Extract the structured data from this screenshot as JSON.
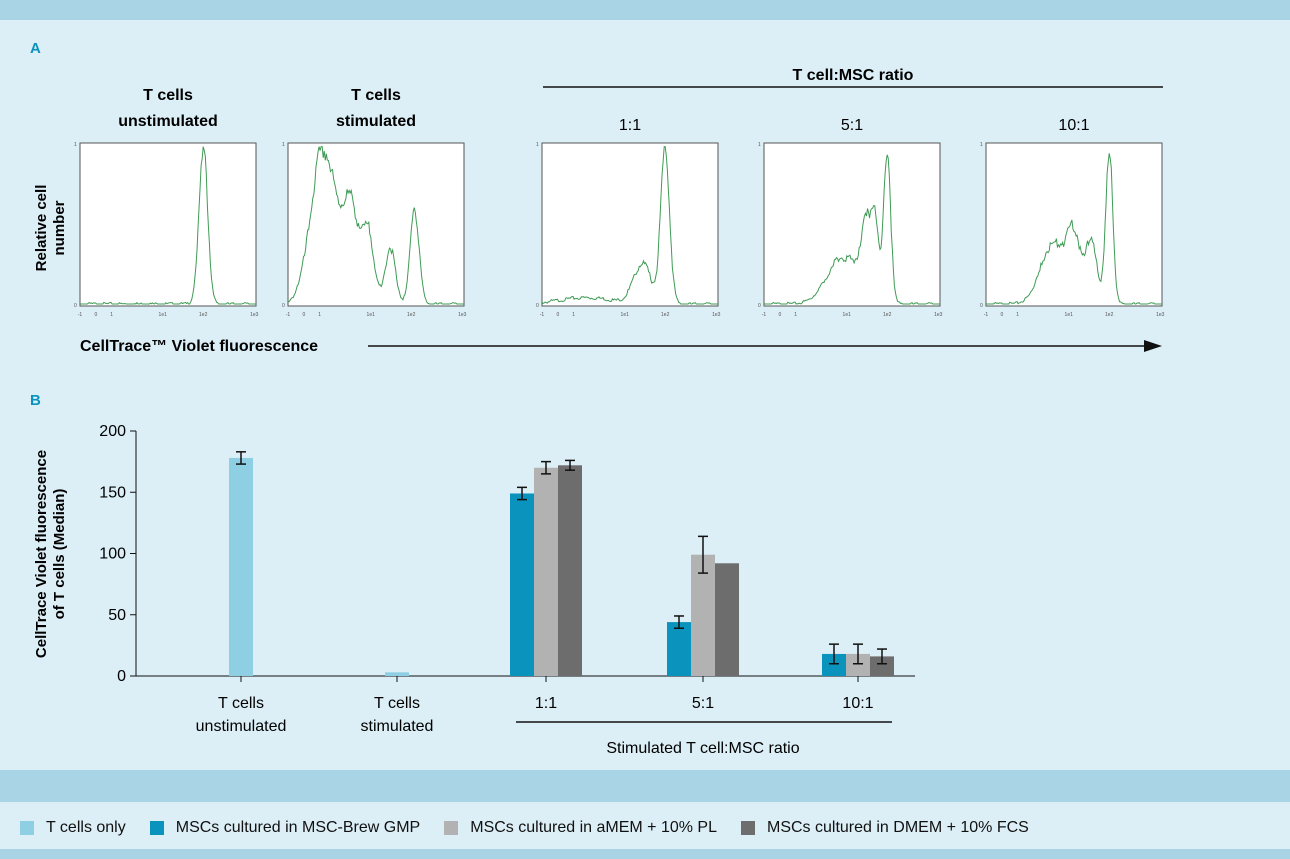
{
  "panel_a": {
    "label": "A",
    "ratio_header": "T cell:MSC ratio",
    "y_axis_label_line1": "Relative cell",
    "y_axis_label_line2": "number",
    "x_axis_label": "CellTrace™ Violet fluorescence",
    "histograms": [
      {
        "title_line1": "T cells",
        "title_line2": "unstimulated"
      },
      {
        "title_line1": "T cells",
        "title_line2": "stimulated"
      },
      {
        "title_line1": "1:1",
        "title_line2": ""
      },
      {
        "title_line1": "5:1",
        "title_line2": ""
      },
      {
        "title_line1": "10:1",
        "title_line2": ""
      }
    ],
    "tick_labels": [
      "-1",
      "0",
      "1",
      "1e1",
      "1e2",
      "1e3"
    ],
    "line_color": "#3f9b55"
  },
  "chart_data": {
    "type": "bar",
    "panel_label": "B",
    "ylabel_line1": "CellTrace Violet fluorescence",
    "ylabel_line2": "of T cells (Median)",
    "ylim": [
      0,
      200
    ],
    "yticks": [
      0,
      50,
      100,
      150,
      200
    ],
    "categories": [
      {
        "line1": "T cells",
        "line2": "unstimulated"
      },
      {
        "line1": "T cells",
        "line2": "stimulated"
      },
      {
        "line1": "1:1",
        "line2": ""
      },
      {
        "line1": "5:1",
        "line2": ""
      },
      {
        "line1": "10:1",
        "line2": ""
      }
    ],
    "group_label": "Stimulated T cell:MSC ratio",
    "series": [
      {
        "name": "T cells only",
        "color": "#8fcfe3",
        "values": [
          178,
          3,
          null,
          null,
          null
        ],
        "errors": [
          5,
          0,
          null,
          null,
          null
        ]
      },
      {
        "name": "MSCs cultured in MSC-Brew GMP",
        "color": "#0a94bd",
        "values": [
          null,
          null,
          149,
          44,
          18
        ],
        "errors": [
          null,
          null,
          5,
          5,
          8
        ]
      },
      {
        "name": "MSCs cultured in aMEM + 10% PL",
        "color": "#b2b2b2",
        "values": [
          null,
          null,
          170,
          99,
          18
        ],
        "errors": [
          null,
          null,
          5,
          15,
          8
        ]
      },
      {
        "name": "MSCs cultured in DMEM + 10% FCS",
        "color": "#6d6d6d",
        "values": [
          null,
          null,
          172,
          92,
          16
        ],
        "errors": [
          null,
          null,
          4,
          0,
          6
        ]
      }
    ]
  },
  "legend": [
    {
      "label": "T cells only",
      "color": "#8fcfe3"
    },
    {
      "label": "MSCs cultured in MSC-Brew GMP",
      "color": "#0a94bd"
    },
    {
      "label": "MSCs cultured in aMEM + 10% PL",
      "color": "#b2b2b2"
    },
    {
      "label": "MSCs cultured in DMEM + 10% FCS",
      "color": "#6d6d6d"
    }
  ]
}
